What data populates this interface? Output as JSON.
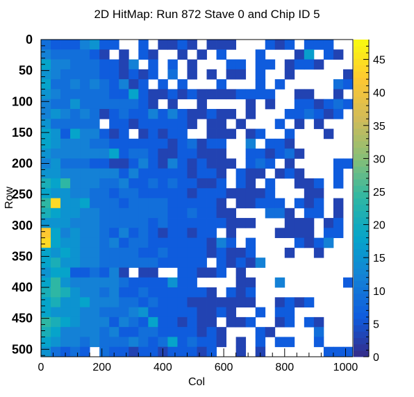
{
  "chart_data": {
    "type": "heatmap",
    "title": "2D HitMap: Run 872 Stave 0 and Chip ID 5",
    "xlabel": "Col",
    "ylabel": "Row",
    "xlim": [
      0,
      1024
    ],
    "ylim": [
      0,
      512
    ],
    "y_inverted": true,
    "zlim": [
      0,
      48
    ],
    "x_ticks": [
      0,
      200,
      400,
      600,
      800,
      1000
    ],
    "y_ticks": [
      0,
      50,
      100,
      150,
      200,
      250,
      300,
      350,
      400,
      450,
      500
    ],
    "z_ticks": [
      0,
      5,
      10,
      15,
      20,
      25,
      30,
      35,
      40,
      45
    ],
    "bins": {
      "nx": 32,
      "ny": 32,
      "x_width": 32,
      "y_width": 16
    },
    "colormap": [
      "#352a87",
      "#0f5cdd",
      "#1481d6",
      "#06a4ca",
      "#2eb7a4",
      "#87bf77",
      "#d1bb59",
      "#fec832",
      "#f9fb0e"
    ],
    "empty_color": "#ffffff",
    "grid": false,
    "legend": "colorbar-right",
    "z_rows": [
      [
        9,
        6,
        6,
        6,
        12,
        15,
        6,
        6,
        0,
        0,
        6,
        0,
        3,
        3,
        6,
        3,
        0,
        3,
        3,
        3,
        0,
        0,
        0,
        6,
        3,
        6,
        0,
        6,
        6,
        6,
        0,
        0
      ],
      [
        12,
        9,
        9,
        9,
        9,
        6,
        3,
        0,
        3,
        0,
        6,
        3,
        0,
        0,
        3,
        0,
        3,
        0,
        6,
        0,
        0,
        0,
        6,
        0,
        0,
        0,
        3,
        17,
        0,
        6,
        3,
        0
      ],
      [
        18,
        12,
        12,
        9,
        9,
        9,
        6,
        6,
        3,
        12,
        0,
        6,
        0,
        6,
        0,
        3,
        0,
        0,
        0,
        6,
        6,
        0,
        6,
        6,
        0,
        3,
        6,
        6,
        3,
        0,
        0,
        0
      ],
      [
        15,
        12,
        9,
        9,
        9,
        9,
        6,
        6,
        3,
        6,
        3,
        6,
        0,
        9,
        0,
        3,
        0,
        3,
        0,
        3,
        3,
        0,
        6,
        0,
        0,
        3,
        0,
        0,
        0,
        0,
        0,
        3
      ],
      [
        18,
        9,
        9,
        12,
        9,
        12,
        9,
        6,
        12,
        3,
        6,
        0,
        6,
        0,
        6,
        0,
        0,
        0,
        6,
        0,
        0,
        0,
        6,
        0,
        6,
        0,
        0,
        0,
        0,
        0,
        9,
        6
      ],
      [
        15,
        12,
        9,
        9,
        9,
        9,
        9,
        6,
        6,
        18,
        6,
        3,
        3,
        6,
        3,
        6,
        3,
        3,
        3,
        3,
        6,
        6,
        6,
        6,
        0,
        0,
        3,
        3,
        0,
        0,
        3,
        0
      ],
      [
        12,
        9,
        9,
        15,
        9,
        9,
        9,
        9,
        9,
        9,
        6,
        3,
        0,
        3,
        0,
        0,
        3,
        0,
        0,
        0,
        0,
        3,
        0,
        3,
        0,
        0,
        6,
        6,
        3,
        6,
        9,
        6
      ],
      [
        12,
        15,
        12,
        9,
        12,
        9,
        3,
        6,
        9,
        6,
        6,
        12,
        6,
        12,
        6,
        3,
        3,
        6,
        3,
        3,
        0,
        3,
        0,
        0,
        0,
        6,
        6,
        9,
        6,
        3,
        6,
        0
      ],
      [
        15,
        9,
        9,
        9,
        9,
        9,
        0,
        6,
        6,
        3,
        6,
        6,
        6,
        6,
        6,
        3,
        0,
        3,
        3,
        0,
        3,
        0,
        0,
        0,
        6,
        0,
        3,
        0,
        3,
        0,
        0,
        0
      ],
      [
        18,
        15,
        6,
        18,
        12,
        12,
        6,
        3,
        6,
        0,
        3,
        6,
        3,
        6,
        6,
        0,
        0,
        3,
        3,
        3,
        0,
        3,
        6,
        0,
        0,
        6,
        0,
        0,
        0,
        3,
        0,
        0
      ],
      [
        18,
        15,
        12,
        12,
        12,
        9,
        9,
        6,
        6,
        6,
        6,
        6,
        6,
        3,
        6,
        9,
        3,
        6,
        6,
        0,
        0,
        12,
        0,
        6,
        6,
        3,
        0,
        0,
        0,
        0,
        0,
        0
      ],
      [
        15,
        12,
        12,
        12,
        12,
        12,
        12,
        18,
        6,
        9,
        9,
        6,
        3,
        3,
        6,
        6,
        3,
        3,
        3,
        0,
        0,
        6,
        6,
        3,
        6,
        9,
        3,
        0,
        0,
        0,
        0,
        0
      ],
      [
        12,
        15,
        9,
        9,
        9,
        6,
        6,
        3,
        3,
        6,
        12,
        6,
        3,
        12,
        6,
        3,
        6,
        3,
        3,
        3,
        0,
        6,
        9,
        6,
        0,
        3,
        0,
        0,
        0,
        0,
        6,
        6
      ],
      [
        15,
        15,
        12,
        12,
        12,
        12,
        12,
        12,
        6,
        12,
        6,
        6,
        6,
        6,
        6,
        3,
        6,
        6,
        3,
        0,
        6,
        3,
        3,
        0,
        3,
        6,
        3,
        0,
        0,
        0,
        6,
        0
      ],
      [
        21,
        18,
        24,
        12,
        12,
        12,
        9,
        9,
        12,
        6,
        6,
        9,
        6,
        9,
        6,
        6,
        3,
        3,
        6,
        0,
        6,
        3,
        0,
        6,
        0,
        0,
        3,
        3,
        6,
        0,
        6,
        0
      ],
      [
        18,
        15,
        15,
        12,
        12,
        9,
        9,
        6,
        9,
        9,
        6,
        6,
        6,
        6,
        6,
        3,
        6,
        6,
        6,
        3,
        3,
        3,
        3,
        6,
        0,
        0,
        0,
        3,
        3,
        0,
        0,
        0
      ],
      [
        24,
        44,
        15,
        15,
        18,
        9,
        9,
        9,
        6,
        9,
        9,
        9,
        9,
        6,
        6,
        6,
        6,
        6,
        3,
        0,
        3,
        3,
        6,
        6,
        6,
        0,
        6,
        3,
        6,
        0,
        3,
        0
      ],
      [
        21,
        18,
        15,
        15,
        12,
        12,
        9,
        9,
        9,
        9,
        9,
        9,
        9,
        6,
        6,
        9,
        6,
        6,
        3,
        3,
        0,
        0,
        0,
        9,
        9,
        3,
        0,
        6,
        6,
        0,
        3,
        0
      ],
      [
        15,
        15,
        15,
        12,
        12,
        12,
        9,
        9,
        9,
        9,
        9,
        6,
        9,
        6,
        6,
        6,
        6,
        6,
        6,
        3,
        3,
        3,
        0,
        0,
        0,
        3,
        3,
        3,
        0,
        3,
        6,
        0
      ],
      [
        42,
        18,
        12,
        15,
        12,
        12,
        9,
        6,
        12,
        6,
        9,
        6,
        3,
        6,
        6,
        3,
        6,
        6,
        0,
        3,
        0,
        0,
        0,
        0,
        3,
        3,
        3,
        3,
        0,
        6,
        6,
        0
      ],
      [
        44,
        18,
        15,
        15,
        12,
        12,
        9,
        12,
        6,
        9,
        9,
        6,
        6,
        6,
        6,
        6,
        6,
        3,
        12,
        6,
        0,
        6,
        0,
        0,
        0,
        0,
        6,
        3,
        6,
        12,
        0,
        0
      ],
      [
        18,
        15,
        18,
        15,
        12,
        12,
        9,
        9,
        9,
        9,
        6,
        6,
        9,
        6,
        6,
        6,
        6,
        3,
        6,
        3,
        3,
        6,
        0,
        0,
        0,
        3,
        0,
        0,
        3,
        0,
        0,
        0
      ],
      [
        18,
        21,
        15,
        15,
        12,
        12,
        9,
        9,
        9,
        9,
        9,
        9,
        6,
        6,
        6,
        6,
        6,
        0,
        6,
        3,
        6,
        3,
        12,
        0,
        0,
        0,
        0,
        0,
        0,
        0,
        0,
        0
      ],
      [
        15,
        18,
        18,
        6,
        6,
        9,
        6,
        12,
        3,
        0,
        3,
        3,
        0,
        0,
        6,
        6,
        3,
        3,
        6,
        0,
        3,
        0,
        0,
        0,
        0,
        0,
        0,
        0,
        0,
        0,
        0,
        0
      ],
      [
        18,
        24,
        15,
        12,
        12,
        12,
        12,
        12,
        9,
        6,
        6,
        6,
        6,
        15,
        6,
        6,
        0,
        0,
        0,
        0,
        3,
        3,
        0,
        0,
        12,
        0,
        0,
        0,
        0,
        0,
        0,
        6
      ],
      [
        21,
        24,
        21,
        15,
        12,
        12,
        9,
        12,
        6,
        6,
        9,
        6,
        6,
        6,
        6,
        6,
        6,
        3,
        0,
        6,
        3,
        6,
        0,
        0,
        0,
        0,
        0,
        0,
        0,
        0,
        0,
        0
      ],
      [
        18,
        21,
        15,
        15,
        18,
        12,
        12,
        12,
        9,
        9,
        6,
        9,
        6,
        6,
        6,
        3,
        3,
        3,
        3,
        3,
        3,
        3,
        0,
        0,
        3,
        6,
        3,
        6,
        0,
        0,
        0,
        0
      ],
      [
        18,
        15,
        15,
        15,
        12,
        12,
        9,
        9,
        9,
        12,
        15,
        6,
        6,
        6,
        6,
        6,
        3,
        3,
        6,
        3,
        0,
        0,
        6,
        0,
        6,
        6,
        0,
        0,
        0,
        0,
        0,
        0
      ],
      [
        24,
        21,
        18,
        15,
        12,
        12,
        12,
        6,
        12,
        9,
        6,
        18,
        6,
        6,
        3,
        6,
        3,
        3,
        0,
        3,
        3,
        6,
        0,
        0,
        3,
        6,
        0,
        6,
        3,
        0,
        0,
        0
      ],
      [
        21,
        18,
        12,
        12,
        12,
        12,
        9,
        12,
        6,
        6,
        9,
        9,
        6,
        6,
        6,
        6,
        3,
        6,
        3,
        0,
        0,
        0,
        6,
        3,
        0,
        0,
        0,
        0,
        9,
        0,
        0,
        0
      ],
      [
        18,
        15,
        12,
        12,
        9,
        12,
        9,
        9,
        9,
        12,
        9,
        6,
        9,
        18,
        6,
        9,
        6,
        6,
        3,
        0,
        3,
        0,
        6,
        0,
        6,
        6,
        0,
        0,
        6,
        0,
        0,
        0
      ],
      [
        15,
        9,
        6,
        9,
        6,
        0,
        9,
        6,
        6,
        3,
        6,
        6,
        3,
        6,
        6,
        6,
        3,
        6,
        0,
        0,
        3,
        0,
        3,
        0,
        0,
        0,
        0,
        0,
        0,
        6,
        6,
        6
      ]
    ]
  }
}
